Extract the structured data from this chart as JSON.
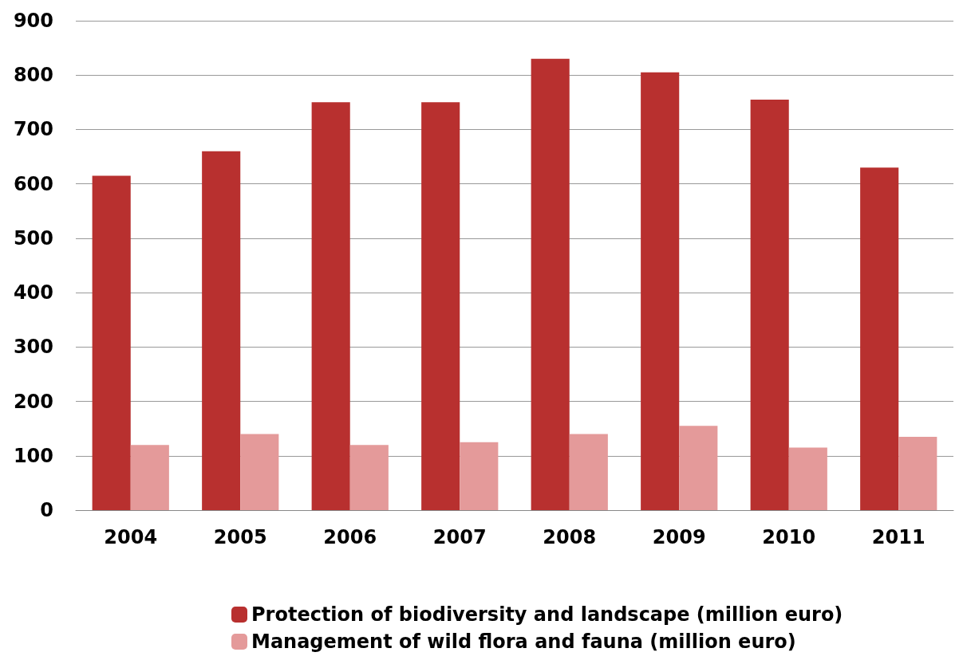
{
  "chart_data": {
    "type": "bar",
    "categories": [
      "2004",
      "2005",
      "2006",
      "2007",
      "2008",
      "2009",
      "2010",
      "2011"
    ],
    "series": [
      {
        "name": "Protection of biodiversity and landscape (million euro)",
        "color": "#b8302f",
        "values": [
          615,
          660,
          750,
          750,
          830,
          805,
          755,
          630
        ]
      },
      {
        "name": "Management of wild flora and fauna (million euro)",
        "color": "#e49a9a",
        "values": [
          120,
          140,
          120,
          125,
          140,
          155,
          115,
          135
        ]
      }
    ],
    "ylim": [
      0,
      900
    ],
    "yticks": [
      0,
      100,
      200,
      300,
      400,
      500,
      600,
      700,
      800,
      900
    ],
    "grid": "y",
    "legend": "bottom"
  }
}
